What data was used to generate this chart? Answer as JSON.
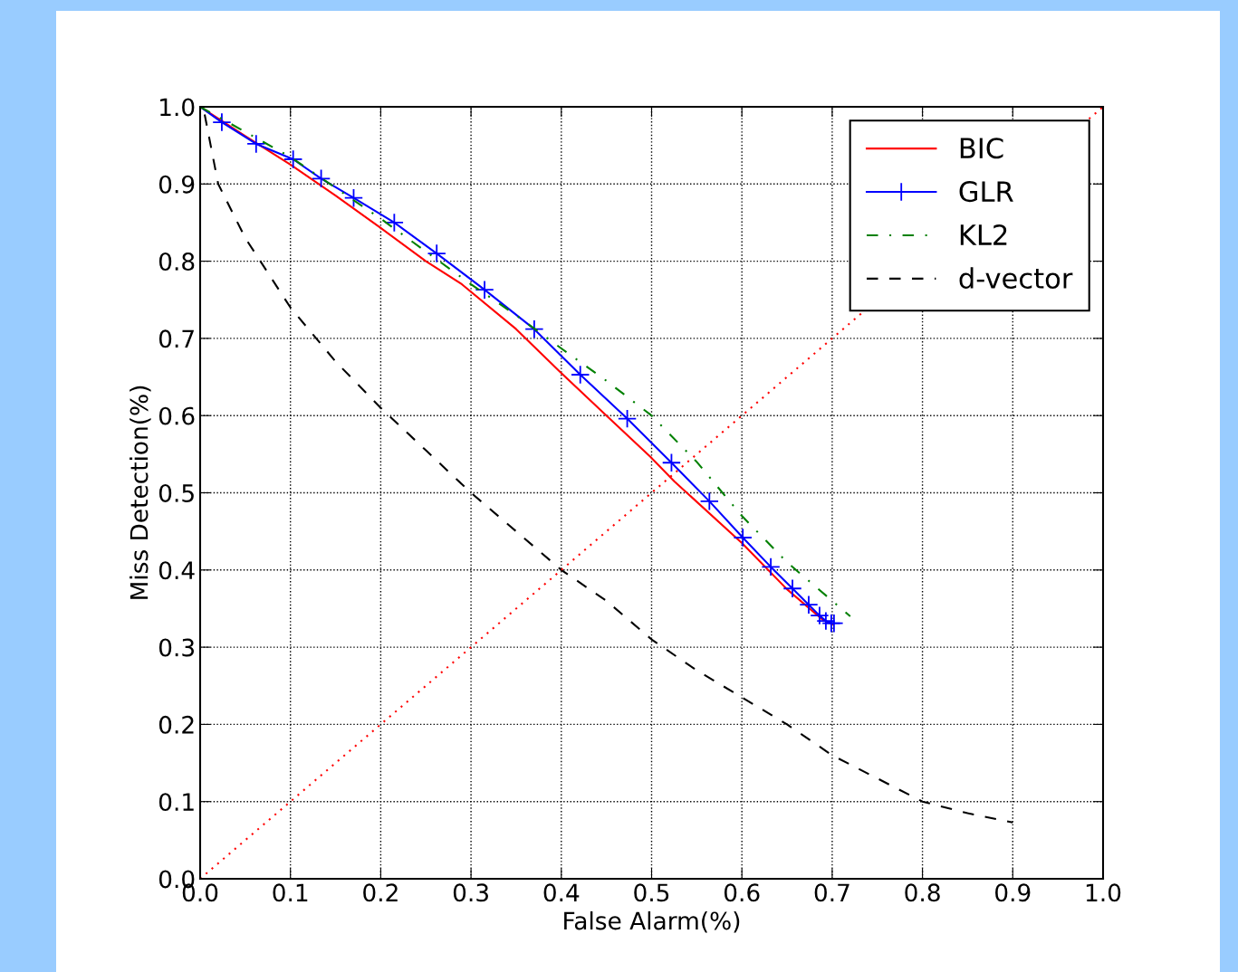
{
  "chart_data": {
    "type": "line",
    "xlabel": "False Alarm(%)",
    "ylabel": "Miss Detection(%)",
    "xlim": [
      0.0,
      1.0
    ],
    "ylim": [
      0.0,
      1.0
    ],
    "xticks": [
      {
        "value": 0.0,
        "label": "0.0"
      },
      {
        "value": 0.1,
        "label": "0.1"
      },
      {
        "value": 0.2,
        "label": "0.2"
      },
      {
        "value": 0.3,
        "label": "0.3"
      },
      {
        "value": 0.4,
        "label": "0.4"
      },
      {
        "value": 0.5,
        "label": "0.5"
      },
      {
        "value": 0.6,
        "label": "0.6"
      },
      {
        "value": 0.7,
        "label": "0.7"
      },
      {
        "value": 0.8,
        "label": "0.8"
      },
      {
        "value": 0.9,
        "label": "0.9"
      },
      {
        "value": 1.0,
        "label": "1.0"
      }
    ],
    "yticks": [
      {
        "value": 0.0,
        "label": "0.0"
      },
      {
        "value": 0.1,
        "label": "0.1"
      },
      {
        "value": 0.2,
        "label": "0.2"
      },
      {
        "value": 0.3,
        "label": "0.3"
      },
      {
        "value": 0.4,
        "label": "0.4"
      },
      {
        "value": 0.5,
        "label": "0.5"
      },
      {
        "value": 0.6,
        "label": "0.6"
      },
      {
        "value": 0.7,
        "label": "0.7"
      },
      {
        "value": 0.8,
        "label": "0.8"
      },
      {
        "value": 0.9,
        "label": "0.9"
      },
      {
        "value": 1.0,
        "label": "1.0"
      }
    ],
    "grid": true,
    "legend": "top right",
    "series": [
      {
        "name": "BIC",
        "color": "#ff0000",
        "line_style": "solid",
        "marker": "none",
        "x": [
          0,
          0.05,
          0.1,
          0.15,
          0.2,
          0.25,
          0.29,
          0.35,
          0.4,
          0.45,
          0.5,
          0.525,
          0.6,
          0.65,
          0.69,
          0.7
        ],
        "values": [
          1.0,
          0.962,
          0.925,
          0.885,
          0.843,
          0.8,
          0.77,
          0.712,
          0.655,
          0.6,
          0.545,
          0.515,
          0.435,
          0.375,
          0.335,
          0.33
        ]
      },
      {
        "name": "GLR",
        "color": "#0000ff",
        "line_style": "solid",
        "marker": "cross",
        "x": [
          0,
          0.024,
          0.062,
          0.103,
          0.134,
          0.17,
          0.215,
          0.262,
          0.315,
          0.37,
          0.421,
          0.473,
          0.522,
          0.564,
          0.601,
          0.632,
          0.656,
          0.674,
          0.686,
          0.693,
          0.699,
          0.702
        ],
        "values": [
          1.0,
          0.98,
          0.952,
          0.932,
          0.907,
          0.882,
          0.85,
          0.81,
          0.763,
          0.712,
          0.653,
          0.596,
          0.539,
          0.489,
          0.442,
          0.404,
          0.376,
          0.355,
          0.341,
          0.334,
          0.331,
          0.331
        ]
      },
      {
        "name": "KL2",
        "color": "#008000",
        "line_style": "dashdot",
        "marker": "none",
        "x": [
          0,
          0.1,
          0.2,
          0.3,
          0.35,
          0.4,
          0.45,
          0.5,
          0.55,
          0.6,
          0.65,
          0.7,
          0.72
        ],
        "values": [
          1.0,
          0.935,
          0.855,
          0.77,
          0.73,
          0.687,
          0.645,
          0.6,
          0.54,
          0.47,
          0.41,
          0.36,
          0.34
        ]
      },
      {
        "name": "d-vector",
        "color": "#000000",
        "line_style": "dashed",
        "marker": "none",
        "x": [
          0.005,
          0.02,
          0.05,
          0.1,
          0.15,
          0.2,
          0.25,
          0.3,
          0.35,
          0.4,
          0.45,
          0.5,
          0.55,
          0.6,
          0.65,
          0.7,
          0.75,
          0.8,
          0.85,
          0.9
        ],
        "values": [
          0.99,
          0.9,
          0.83,
          0.74,
          0.67,
          0.61,
          0.555,
          0.5,
          0.45,
          0.4,
          0.36,
          0.31,
          0.27,
          0.235,
          0.2,
          0.16,
          0.13,
          0.1,
          0.085,
          0.073
        ]
      },
      {
        "color": "#ff0000",
        "line_style": "dotted",
        "marker": "none",
        "x": [
          0,
          1
        ],
        "values": [
          0,
          1
        ]
      }
    ]
  }
}
